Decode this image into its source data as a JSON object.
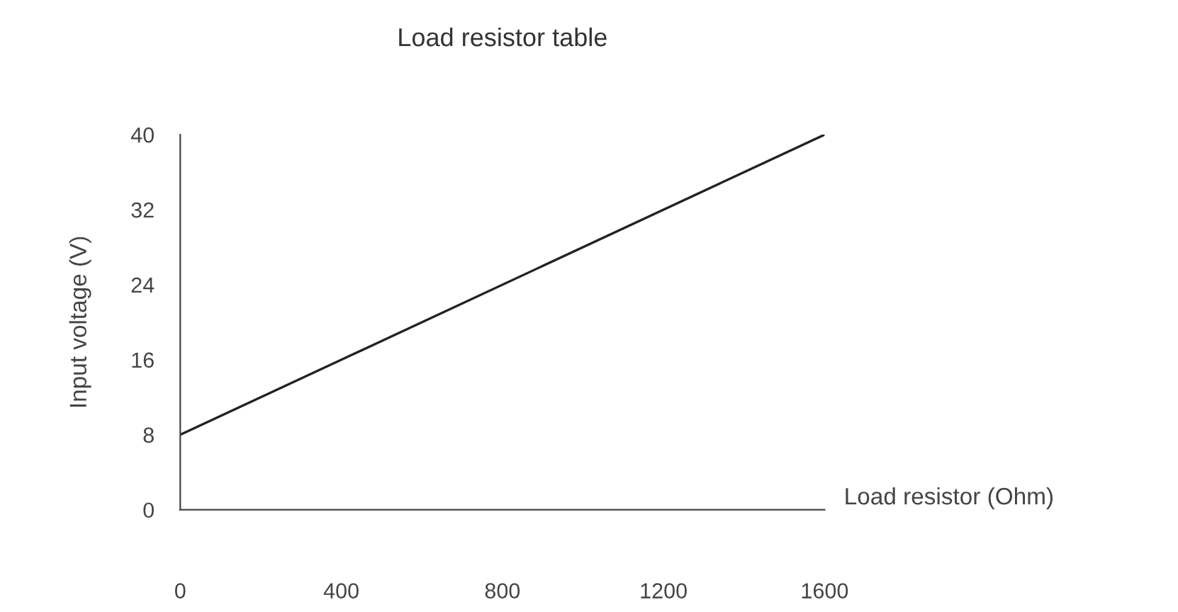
{
  "chart_data": {
    "type": "line",
    "title": "Load resistor table",
    "xlabel": "Load resistor (Ohm)",
    "ylabel": "Input voltage (V)",
    "x": [
      0,
      1600
    ],
    "series": [
      {
        "color": "#222222",
        "values": [
          8,
          40
        ]
      }
    ],
    "xlim": [
      0,
      1600
    ],
    "xticks": [
      0,
      400,
      800,
      1200,
      1600
    ],
    "ylim": [
      0,
      40
    ],
    "yticks": [
      0,
      8,
      16,
      24,
      32,
      40
    ],
    "grid": false,
    "legend": false,
    "marker": "none",
    "line_style": "solid"
  }
}
